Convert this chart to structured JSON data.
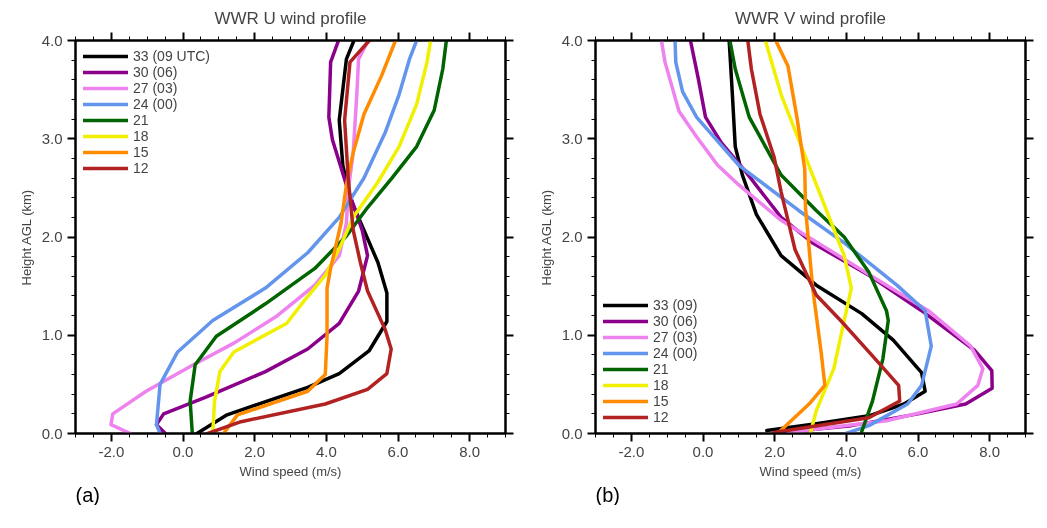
{
  "chart_data": [
    {
      "type": "line",
      "title": "WWR U wind profile",
      "xlabel": "Wind speed (m/s)",
      "ylabel": "Height AGL (km)",
      "annotations": [
        "(a)"
      ],
      "xlim": [
        -3,
        9
      ],
      "ylim": [
        0,
        4
      ],
      "xticks": [
        {
          "value": -2,
          "label": "-2.0"
        },
        {
          "value": 0,
          "label": "0.0"
        },
        {
          "value": 2,
          "label": "2.0"
        },
        {
          "value": 4,
          "label": "4.0"
        },
        {
          "value": 6,
          "label": "6.0"
        },
        {
          "value": 8,
          "label": "8.0"
        }
      ],
      "yticks": [
        {
          "value": 0,
          "label": "0.0"
        },
        {
          "value": 1,
          "label": "1.0"
        },
        {
          "value": 2,
          "label": "2.0"
        },
        {
          "value": 3,
          "label": "3.0"
        },
        {
          "value": 4,
          "label": "4.0"
        }
      ],
      "legend": "top left",
      "grid": false,
      "marker": "none",
      "line_style": "solid",
      "series": [
        {
          "name": "33 (09 UTC)",
          "color": "#000000",
          "x": [
            0.39,
            1.23,
            3.48,
            4.36,
            5.19,
            5.69,
            5.69,
            5.44,
            5.05,
            4.66,
            4.46,
            4.36,
            4.56,
            4.77
          ],
          "values": [
            0,
            0.19,
            0.47,
            0.61,
            0.84,
            1.14,
            1.43,
            1.74,
            2.07,
            2.4,
            2.73,
            3.19,
            3.81,
            4.0
          ]
        },
        {
          "name": "30 (06)",
          "color": "#8b008b",
          "x": [
            -0.49,
            -0.74,
            -0.54,
            0.64,
            2.3,
            3.48,
            4.36,
            4.9,
            5.15,
            5.0,
            4.56,
            4.17,
            4.07,
            4.12,
            4.34
          ],
          "values": [
            0,
            0.09,
            0.2,
            0.37,
            0.63,
            0.86,
            1.12,
            1.45,
            1.81,
            2.07,
            2.53,
            2.99,
            3.22,
            3.78,
            4.0
          ]
        },
        {
          "name": "27 (03)",
          "color": "#ee82ee",
          "x": [
            -1.47,
            -2.01,
            -1.96,
            -1.03,
            0.34,
            1.42,
            2.6,
            3.68,
            4.36,
            4.56,
            4.61,
            4.75,
            4.85,
            4.9,
            5.17
          ],
          "values": [
            0,
            0.09,
            0.2,
            0.43,
            0.71,
            0.92,
            1.19,
            1.51,
            1.81,
            2.14,
            2.47,
            2.86,
            3.45,
            3.81,
            4.0
          ]
        },
        {
          "name": "24 (00)",
          "color": "#6495ed",
          "x": [
            -0.64,
            -0.74,
            -0.64,
            -0.15,
            0.83,
            2.3,
            3.48,
            4.36,
            5.05,
            5.64,
            6.03,
            6.32,
            6.52
          ],
          "values": [
            0,
            0.09,
            0.5,
            0.83,
            1.15,
            1.48,
            1.84,
            2.2,
            2.6,
            3.06,
            3.45,
            3.81,
            4.0
          ]
        },
        {
          "name": "21",
          "color": "#006400",
          "x": [
            0.26,
            0.2,
            0.34,
            0.93,
            2.3,
            3.68,
            4.56,
            5.15,
            5.83,
            6.52,
            7.01,
            7.25,
            7.35
          ],
          "values": [
            0,
            0.33,
            0.7,
            0.99,
            1.32,
            1.68,
            2.01,
            2.3,
            2.6,
            2.92,
            3.29,
            3.71,
            4.0
          ]
        },
        {
          "name": "18",
          "color": "#f0f000",
          "x": [
            0.83,
            0.88,
            1.03,
            1.42,
            2.89,
            3.38,
            3.97,
            4.36,
            4.75,
            5.44,
            6.03,
            6.52,
            6.81,
            6.91
          ],
          "values": [
            0,
            0.33,
            0.63,
            0.83,
            1.12,
            1.35,
            1.61,
            1.88,
            2.2,
            2.56,
            2.92,
            3.35,
            3.78,
            4.0
          ]
        },
        {
          "name": "15",
          "color": "#ff8c00",
          "x": [
            1.13,
            1.52,
            3.48,
            3.97,
            4.02,
            4.02,
            4.12,
            4.41,
            4.56,
            4.75,
            5.05,
            5.54,
            5.93
          ],
          "values": [
            0,
            0.19,
            0.43,
            0.6,
            0.99,
            1.48,
            1.68,
            2.14,
            2.53,
            2.86,
            3.25,
            3.64,
            4.0
          ]
        },
        {
          "name": "12",
          "color": "#b22222",
          "x": [
            0.69,
            1.62,
            3.97,
            5.15,
            5.69,
            5.81,
            5.64,
            5.15,
            4.95,
            4.75,
            4.61,
            4.51,
            4.66,
            5.2
          ],
          "values": [
            0,
            0.12,
            0.3,
            0.45,
            0.61,
            0.86,
            1.06,
            1.45,
            1.74,
            2.07,
            2.6,
            3.19,
            3.78,
            4.0
          ]
        }
      ]
    },
    {
      "type": "line",
      "title": "WWR V wind profile",
      "xlabel": "Wind speed (m/s)",
      "ylabel": "Height AGL (km)",
      "annotations": [
        "(b)"
      ],
      "xlim": [
        -3,
        9
      ],
      "ylim": [
        0,
        4
      ],
      "xticks": [
        {
          "value": -2,
          "label": "-2.0"
        },
        {
          "value": 0,
          "label": "0.0"
        },
        {
          "value": 2,
          "label": "2.0"
        },
        {
          "value": 4,
          "label": "4.0"
        },
        {
          "value": 6,
          "label": "6.0"
        },
        {
          "value": 8,
          "label": "8.0"
        }
      ],
      "yticks": [
        {
          "value": 0,
          "label": "0.0"
        },
        {
          "value": 1,
          "label": "1.0"
        },
        {
          "value": 2,
          "label": "2.0"
        },
        {
          "value": 3,
          "label": "3.0"
        },
        {
          "value": 4,
          "label": "4.0"
        }
      ],
      "legend": "bottom left",
      "grid": false,
      "marker": "none",
      "line_style": "solid",
      "series": [
        {
          "name": "33 (09)",
          "color": "#000000",
          "x": [
            1.78,
            3.16,
            4.63,
            5.61,
            6.2,
            6.1,
            5.31,
            4.43,
            3.16,
            2.18,
            1.49,
            1.1,
            0.9,
            0.82,
            0.73
          ],
          "values": [
            0.03,
            0.1,
            0.18,
            0.3,
            0.43,
            0.62,
            0.95,
            1.22,
            1.51,
            1.81,
            2.23,
            2.63,
            2.92,
            3.45,
            4.0
          ]
        },
        {
          "name": "30 (06)",
          "color": "#8b008b",
          "x": [
            2.18,
            4.14,
            6.0,
            7.33,
            8.07,
            8.06,
            7.57,
            6.1,
            4.63,
            3.06,
            2.18,
            1.2,
            0.51,
            0.07,
            -0.13,
            -0.35
          ],
          "values": [
            0.01,
            0.08,
            0.2,
            0.3,
            0.46,
            0.64,
            0.85,
            1.25,
            1.61,
            1.94,
            2.2,
            2.66,
            2.96,
            3.22,
            3.61,
            4.0
          ]
        },
        {
          "name": "27 (03)",
          "color": "#ee82ee",
          "x": [
            2.37,
            5.12,
            7.08,
            7.67,
            7.81,
            7.47,
            6.29,
            5.12,
            3.65,
            2.18,
            1.0,
            0.41,
            -0.18,
            -0.67,
            -1.06,
            -1.16
          ],
          "values": [
            0.01,
            0.13,
            0.3,
            0.49,
            0.66,
            0.89,
            1.25,
            1.51,
            1.84,
            2.17,
            2.53,
            2.73,
            3.02,
            3.28,
            3.78,
            4.0
          ]
        },
        {
          "name": "24 (00)",
          "color": "#6495ed",
          "x": [
            3.99,
            4.63,
            5.71,
            6.1,
            6.37,
            6.2,
            5.41,
            3.94,
            2.67,
            1.0,
            -0.18,
            -0.57,
            -0.76,
            -0.78
          ],
          "values": [
            0,
            0.08,
            0.3,
            0.49,
            0.89,
            1.25,
            1.51,
            1.94,
            2.27,
            2.73,
            3.22,
            3.48,
            3.78,
            4.0
          ]
        },
        {
          "name": "21",
          "color": "#006400",
          "x": [
            4.43,
            4.73,
            5.02,
            5.17,
            5.12,
            4.63,
            3.94,
            3.16,
            2.18,
            1.29,
            0.9,
            0.75
          ],
          "values": [
            0.02,
            0.33,
            0.76,
            1.15,
            1.25,
            1.64,
            2.0,
            2.27,
            2.63,
            3.22,
            3.71,
            4.0
          ]
        },
        {
          "name": "18",
          "color": "#f0f000",
          "x": [
            3.01,
            3.16,
            3.65,
            3.94,
            4.14,
            3.94,
            3.35,
            2.67,
            2.18,
            1.74
          ],
          "values": [
            0.02,
            0.23,
            0.66,
            1.15,
            1.48,
            1.81,
            2.36,
            2.99,
            3.45,
            4.0
          ]
        },
        {
          "name": "15",
          "color": "#ff8c00",
          "x": [
            2.08,
            2.96,
            3.4,
            3.3,
            3.06,
            2.86,
            2.84,
            2.62,
            2.37,
            2.03
          ],
          "values": [
            0,
            0.3,
            0.49,
            0.82,
            1.48,
            2.3,
            2.69,
            3.22,
            3.74,
            4.0
          ]
        },
        {
          "name": "12",
          "color": "#b22222",
          "x": [
            1.98,
            4.63,
            5.49,
            5.46,
            4.73,
            3.84,
            3.16,
            2.57,
            2.18,
            1.98,
            1.59,
            1.35,
            1.25
          ],
          "values": [
            0.01,
            0.16,
            0.33,
            0.49,
            0.79,
            1.15,
            1.41,
            1.87,
            2.46,
            2.82,
            3.25,
            3.71,
            4.0
          ]
        }
      ]
    }
  ]
}
